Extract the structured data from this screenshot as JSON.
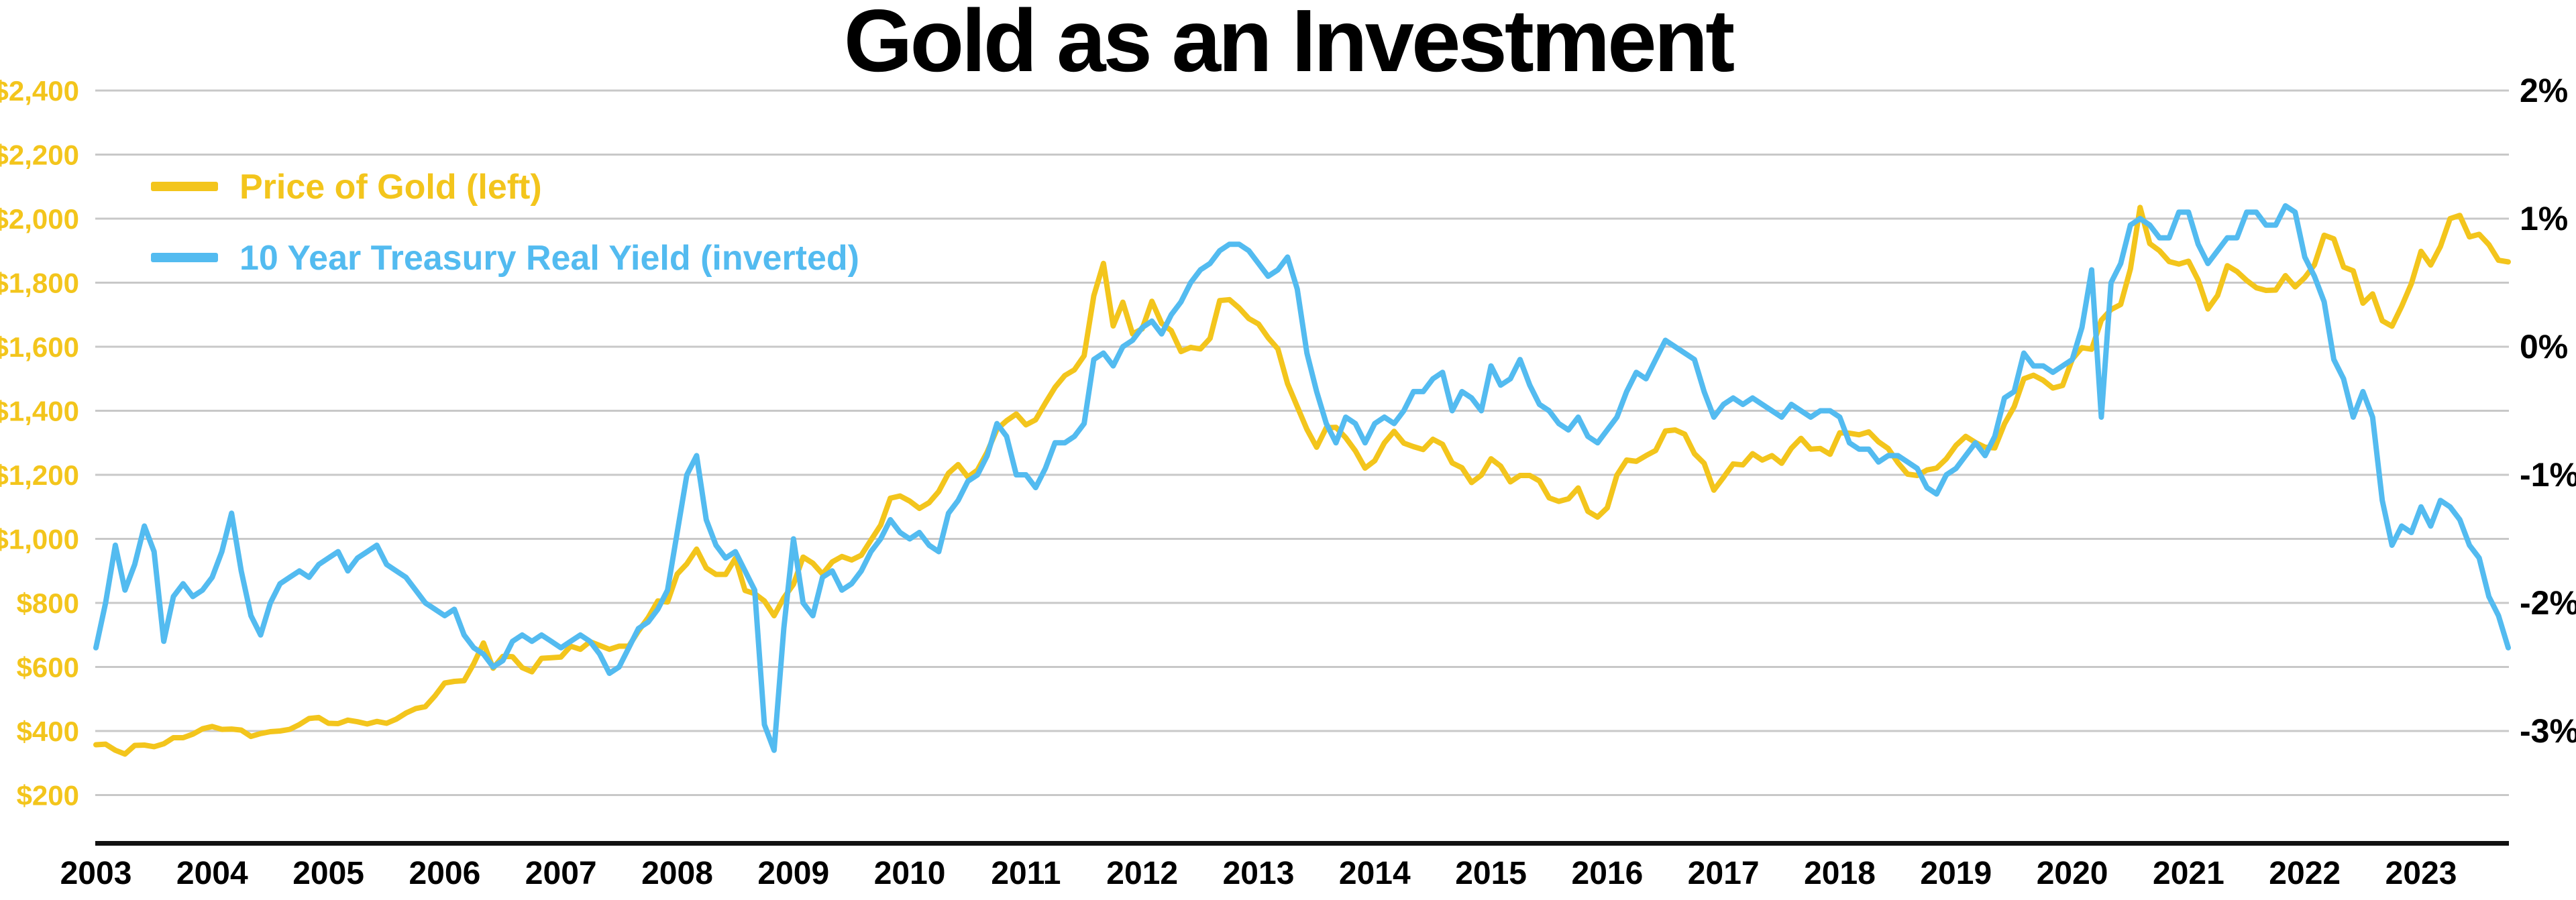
{
  "title": "Gold as an Investment",
  "legend": {
    "gold_label": "Price of Gold (left)",
    "yield_label": "10 Year Treasury Real Yield (inverted)"
  },
  "colors": {
    "gold": "#F3C51C",
    "blue": "#53BBF0",
    "gridline": "#C8C8C8",
    "baseline": "#111111",
    "title": "#000000",
    "x_labels": "#000000",
    "right_labels": "#000000"
  },
  "chart_data": {
    "type": "line",
    "x_unit": "month",
    "x_start": "2003-01",
    "x_end": "2023-10",
    "grid": "on",
    "legend_position": "top-left-inside",
    "x_tick_labels": [
      "2003",
      "2004",
      "2005",
      "2006",
      "2007",
      "2008",
      "2009",
      "2010",
      "2011",
      "2012",
      "2013",
      "2014",
      "2015",
      "2016",
      "2017",
      "2018",
      "2019",
      "2020",
      "2021",
      "2022",
      "2023"
    ],
    "left_axis": {
      "tick_labels": [
        "$2,400",
        "$2,200",
        "$2,000",
        "$1,800",
        "$1,600",
        "$1,400",
        "$1,200",
        "$1,000",
        "$800",
        "$600",
        "$400",
        "$200"
      ],
      "top_value": 2400,
      "step_per_gridline": -200
    },
    "right_axis": {
      "tick_labels": [
        "2%",
        "1%",
        "0%",
        "-1%",
        "-2%",
        "-3%"
      ],
      "top_value": 2,
      "step_per_label": -1,
      "gridlines_per_label": 2
    },
    "series": [
      {
        "name": "Price of Gold (left)",
        "axis": "left",
        "color": "#F3C51C",
        "values": [
          357,
          359,
          340,
          328,
          355,
          356,
          351,
          360,
          379,
          379,
          390,
          407,
          414,
          405,
          406,
          403,
          383,
          392,
          398,
          400,
          405,
          420,
          439,
          442,
          424,
          423,
          434,
          429,
          422,
          430,
          424,
          437,
          456,
          470,
          476,
          510,
          550,
          555,
          557,
          610,
          675,
          596,
          633,
          632,
          598,
          585,
          627,
          629,
          631,
          665,
          655,
          679,
          667,
          655,
          665,
          665,
          712,
          754,
          806,
          803,
          890,
          922,
          968,
          909,
          889,
          889,
          939,
          839,
          829,
          806,
          760,
          816,
          858,
          943,
          924,
          890,
          928,
          945,
          934,
          949,
          996,
          1043,
          1127,
          1134,
          1118,
          1095,
          1113,
          1148,
          1205,
          1232,
          1193,
          1215,
          1271,
          1342,
          1369,
          1390,
          1356,
          1372,
          1424,
          1473,
          1510,
          1528,
          1572,
          1759,
          1860,
          1665,
          1739,
          1640,
          1656,
          1742,
          1673,
          1650,
          1585,
          1598,
          1593,
          1626,
          1744,
          1747,
          1721,
          1688,
          1671,
          1628,
          1593,
          1485,
          1413,
          1342,
          1286,
          1347,
          1348,
          1316,
          1275,
          1221,
          1244,
          1300,
          1336,
          1299,
          1288,
          1279,
          1311,
          1295,
          1237,
          1222,
          1176,
          1199,
          1250,
          1227,
          1178,
          1198,
          1198,
          1181,
          1128,
          1117,
          1125,
          1159,
          1086,
          1068,
          1097,
          1199,
          1246,
          1242,
          1260,
          1276,
          1337,
          1340,
          1327,
          1266,
          1236,
          1152,
          1192,
          1234,
          1231,
          1266,
          1246,
          1260,
          1236,
          1283,
          1314,
          1280,
          1282,
          1264,
          1331,
          1330,
          1325,
          1334,
          1303,
          1282,
          1238,
          1202,
          1198,
          1215,
          1221,
          1250,
          1292,
          1320,
          1301,
          1286,
          1284,
          1359,
          1413,
          1500,
          1511,
          1495,
          1471,
          1479,
          1561,
          1597,
          1592,
          1683,
          1716,
          1732,
          1843,
          2035,
          1922,
          1900,
          1866,
          1858,
          1867,
          1808,
          1718,
          1760,
          1853,
          1835,
          1807,
          1784,
          1776,
          1777,
          1822,
          1787,
          1816,
          1856,
          1948,
          1937,
          1849,
          1837,
          1736,
          1765,
          1681,
          1664,
          1726,
          1797,
          1898,
          1855,
          1913,
          2000,
          2010,
          1943,
          1951,
          1919,
          1870,
          1865
        ]
      },
      {
        "name": "10 Year Treasury Real Yield (inverted)",
        "axis": "right",
        "color": "#53BBF0",
        "values": [
          -2.35,
          -2.0,
          -1.55,
          -1.9,
          -1.7,
          -1.4,
          -1.6,
          -2.3,
          -1.95,
          -1.85,
          -1.95,
          -1.9,
          -1.8,
          -1.6,
          -1.3,
          -1.75,
          -2.1,
          -2.25,
          -2.0,
          -1.85,
          -1.8,
          -1.75,
          -1.8,
          -1.7,
          -1.65,
          -1.6,
          -1.75,
          -1.65,
          -1.6,
          -1.55,
          -1.7,
          -1.75,
          -1.8,
          -1.9,
          -2.0,
          -2.05,
          -2.1,
          -2.05,
          -2.25,
          -2.35,
          -2.4,
          -2.5,
          -2.45,
          -2.3,
          -2.25,
          -2.3,
          -2.25,
          -2.3,
          -2.35,
          -2.3,
          -2.25,
          -2.3,
          -2.4,
          -2.55,
          -2.5,
          -2.35,
          -2.2,
          -2.15,
          -2.05,
          -1.9,
          -1.45,
          -1.0,
          -0.85,
          -1.35,
          -1.55,
          -1.65,
          -1.6,
          -1.75,
          -1.9,
          -2.95,
          -3.15,
          -2.2,
          -1.5,
          -2.0,
          -2.1,
          -1.8,
          -1.75,
          -1.9,
          -1.85,
          -1.75,
          -1.6,
          -1.5,
          -1.35,
          -1.45,
          -1.5,
          -1.45,
          -1.55,
          -1.6,
          -1.3,
          -1.2,
          -1.05,
          -1.0,
          -0.85,
          -0.6,
          -0.7,
          -1.0,
          -1.0,
          -1.1,
          -0.95,
          -0.75,
          -0.75,
          -0.7,
          -0.6,
          -0.1,
          -0.05,
          -0.15,
          0.0,
          0.05,
          0.15,
          0.2,
          0.1,
          0.25,
          0.35,
          0.5,
          0.6,
          0.65,
          0.75,
          0.8,
          0.8,
          0.75,
          0.65,
          0.55,
          0.6,
          0.7,
          0.45,
          -0.05,
          -0.35,
          -0.6,
          -0.75,
          -0.55,
          -0.6,
          -0.75,
          -0.6,
          -0.55,
          -0.6,
          -0.5,
          -0.35,
          -0.35,
          -0.25,
          -0.2,
          -0.5,
          -0.35,
          -0.4,
          -0.5,
          -0.15,
          -0.3,
          -0.25,
          -0.1,
          -0.3,
          -0.45,
          -0.5,
          -0.6,
          -0.65,
          -0.55,
          -0.7,
          -0.75,
          -0.65,
          -0.55,
          -0.35,
          -0.2,
          -0.25,
          -0.1,
          0.05,
          0.0,
          -0.05,
          -0.1,
          -0.35,
          -0.55,
          -0.45,
          -0.4,
          -0.45,
          -0.4,
          -0.45,
          -0.5,
          -0.55,
          -0.45,
          -0.5,
          -0.55,
          -0.5,
          -0.5,
          -0.55,
          -0.75,
          -0.8,
          -0.8,
          -0.9,
          -0.85,
          -0.85,
          -0.9,
          -0.95,
          -1.1,
          -1.15,
          -1.0,
          -0.95,
          -0.85,
          -0.75,
          -0.85,
          -0.7,
          -0.4,
          -0.35,
          -0.05,
          -0.15,
          -0.15,
          -0.2,
          -0.15,
          -0.1,
          0.15,
          0.6,
          -0.55,
          0.5,
          0.65,
          0.95,
          1.0,
          0.95,
          0.85,
          0.85,
          1.05,
          1.05,
          0.8,
          0.65,
          0.75,
          0.85,
          0.85,
          1.05,
          1.05,
          0.95,
          0.95,
          1.1,
          1.05,
          0.7,
          0.55,
          0.35,
          -0.1,
          -0.25,
          -0.55,
          -0.35,
          -0.55,
          -1.2,
          -1.55,
          -1.4,
          -1.45,
          -1.25,
          -1.4,
          -1.2,
          -1.25,
          -1.35,
          -1.55,
          -1.65,
          -1.95,
          -2.1,
          -2.35
        ]
      }
    ]
  }
}
